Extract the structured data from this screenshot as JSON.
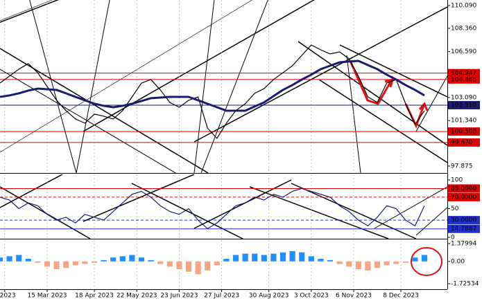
{
  "chart_data": [
    {
      "type": "line",
      "series": [
        {
          "color": "#000000",
          "values": [
            104.19,
            104.72,
            105.25,
            105.67,
            104.98,
            103.93,
            102.88,
            102.09,
            101.46,
            101.14,
            101.83,
            101.67,
            101.46,
            102.09,
            103.14,
            104.19,
            104.46,
            103.67,
            102.72,
            102.35,
            102.88,
            103.14,
            100.77,
            99.98,
            101.14,
            102.09,
            102.62,
            103.41,
            103.77,
            104.46,
            104.98,
            105.51,
            106.3,
            107.09,
            106.72,
            106.41,
            106.56,
            106.04,
            104.72,
            103.14,
            102.72,
            104.19,
            104.46,
            102.62,
            101.04,
            102.09
          ]
        },
        {
          "color": "#1a1a6e",
          "values": [
            103.14,
            103.25,
            103.41,
            103.62,
            103.77,
            103.72,
            103.67,
            103.41,
            103.14,
            102.88,
            102.62,
            102.46,
            102.35,
            102.46,
            102.62,
            102.83,
            103.04,
            103.09,
            103.14,
            103.14,
            103.14,
            102.88,
            102.62,
            102.35,
            102.09,
            102.09,
            102.09,
            102.41,
            102.72,
            103.2,
            103.67,
            104.04,
            104.46,
            104.83,
            105.25,
            105.51,
            105.77,
            105.83,
            105.88,
            105.56,
            105.25,
            104.83,
            104.46,
            104.04,
            103.67,
            103.25
          ]
        }
      ],
      "ylim": [
        97.875,
        110.09
      ],
      "yticks": [
        {
          "value": 110.09,
          "label": "110.090"
        },
        {
          "value": 108.36,
          "label": "108.360"
        },
        {
          "value": 106.59,
          "label": "106.590"
        },
        {
          "value": 104.947,
          "label": "104.947",
          "color": "#e00000"
        },
        {
          "value": 104.465,
          "label": "104.465",
          "color": "#e00000"
        },
        {
          "value": 103.09,
          "label": "103.090"
        },
        {
          "value": 102.51,
          "label": "102.510",
          "color": "#1a1a6e"
        },
        {
          "value": 101.34,
          "label": "101.340"
        },
        {
          "value": 100.503,
          "label": "100.503",
          "color": "#e00000"
        },
        {
          "value": 99.67,
          "label": "99.670",
          "color": "#e00000"
        },
        {
          "value": 97.875,
          "label": "97.875"
        }
      ]
    },
    {
      "type": "line",
      "series": [
        {
          "color": "#1a1a6e",
          "values": [
            70,
            65,
            50,
            60,
            55,
            40,
            30,
            35,
            25,
            40,
            35,
            30,
            45,
            60,
            75,
            80,
            70,
            55,
            45,
            40,
            50,
            30,
            15,
            25,
            40,
            55,
            60,
            70,
            65,
            75,
            70,
            80,
            85,
            80,
            75,
            70,
            55,
            45,
            30,
            20,
            35,
            55,
            50,
            30,
            20,
            55
          ]
        }
      ],
      "ylim": [
        0,
        100
      ],
      "yticks": [
        100,
        {
          "value": 85,
          "label": "85.0000",
          "color": "#e00000"
        },
        {
          "value": 70,
          "label": "70.0000",
          "color": "#e00000"
        },
        50,
        {
          "value": 30,
          "label": "30.0000",
          "color": "#2030d0"
        },
        {
          "value": 14.7887,
          "label": "14.7887",
          "color": "#2030d0"
        },
        0
      ]
    },
    {
      "type": "bar",
      "values": [
        0.3,
        0.4,
        0.5,
        0.2,
        -0.1,
        -0.4,
        -0.6,
        -0.5,
        -0.3,
        -0.2,
        -0.1,
        0.1,
        0.3,
        0.4,
        0.5,
        0.3,
        0.1,
        -0.2,
        -0.4,
        -0.6,
        -0.8,
        -1.0,
        -0.7,
        -0.3,
        0.2,
        0.5,
        0.6,
        0.6,
        0.5,
        0.6,
        0.7,
        0.8,
        0.7,
        0.4,
        0.2,
        0.1,
        -0.2,
        -0.4,
        -0.6,
        -0.7,
        -0.5,
        -0.3,
        -0.2,
        -0.1,
        0.3,
        0.5
      ],
      "color_positive": "#1e90ff",
      "color_negative": "#f4a582",
      "ylim": [
        -1.72534,
        1.37994
      ],
      "yticks": [
        1.37994,
        {
          "value": 0,
          "label": "0.00"
        },
        -1.72534
      ],
      "xlim": [
        0,
        45
      ],
      "xticks": [
        {
          "value": 0.5,
          "label": "b 2023"
        },
        {
          "value": 5,
          "label": "15 Mar 2023"
        },
        {
          "value": 10,
          "label": "18 Apr 2023"
        },
        {
          "value": 14.5,
          "label": "22 May 2023"
        },
        {
          "value": 19,
          "label": "23 Jun 2023"
        },
        {
          "value": 23.5,
          "label": "27 Jul 2023"
        },
        {
          "value": 28.5,
          "label": "30 Aug 2023"
        },
        {
          "value": 33,
          "label": "3 Oct 2023"
        },
        {
          "value": 37.5,
          "label": "6 Nov 2023"
        },
        {
          "value": 42.5,
          "label": "8 Dec 2023"
        }
      ]
    }
  ]
}
